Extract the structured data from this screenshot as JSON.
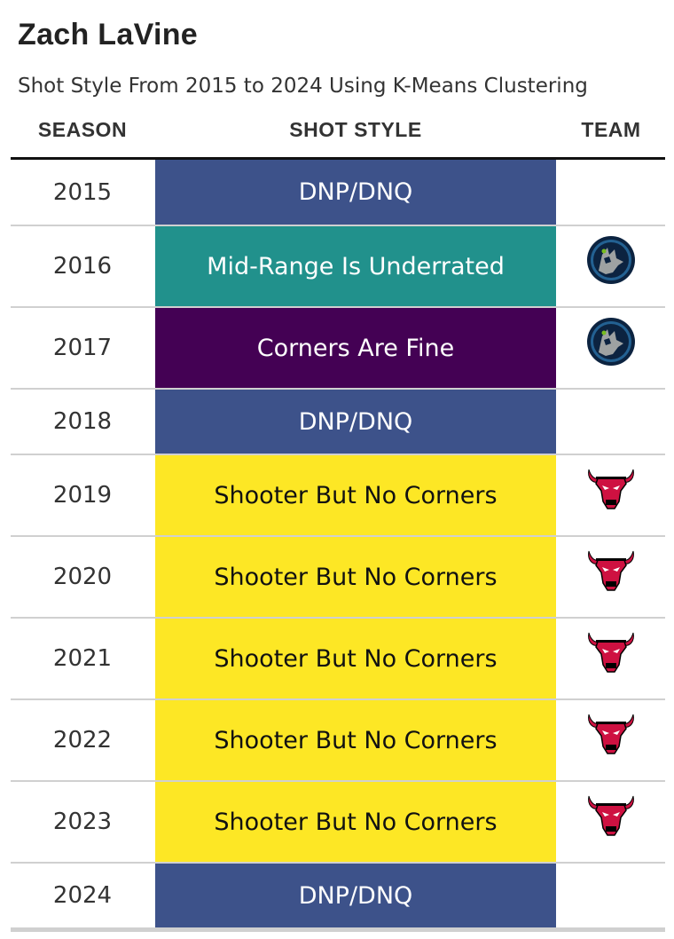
{
  "title": "Zach LaVine",
  "subtitle": "Shot Style From 2015 to 2024 Using K-Means Clustering",
  "headers": {
    "season": "SEASON",
    "style": "SHOT STYLE",
    "team": "TEAM"
  },
  "colors": {
    "DNP/DNQ": "#3d528a",
    "Mid-Range Is Underrated": "#21918c",
    "Corners Are Fine": "#440154",
    "Shooter But No Corners": "#fde725"
  },
  "chart_data": {
    "type": "table",
    "columns": [
      "SEASON",
      "SHOT STYLE",
      "TEAM"
    ],
    "rows": [
      {
        "season": "2015",
        "style": "DNP/DNQ",
        "team": ""
      },
      {
        "season": "2016",
        "style": "Mid-Range Is Underrated",
        "team": "timberwolves-logo"
      },
      {
        "season": "2017",
        "style": "Corners Are Fine",
        "team": "timberwolves-logo"
      },
      {
        "season": "2018",
        "style": "DNP/DNQ",
        "team": ""
      },
      {
        "season": "2019",
        "style": "Shooter But No Corners",
        "team": "bulls-logo"
      },
      {
        "season": "2020",
        "style": "Shooter But No Corners",
        "team": "bulls-logo"
      },
      {
        "season": "2021",
        "style": "Shooter But No Corners",
        "team": "bulls-logo"
      },
      {
        "season": "2022",
        "style": "Shooter But No Corners",
        "team": "bulls-logo"
      },
      {
        "season": "2023",
        "style": "Shooter But No Corners",
        "team": "bulls-logo"
      },
      {
        "season": "2024",
        "style": "DNP/DNQ",
        "team": ""
      }
    ]
  }
}
